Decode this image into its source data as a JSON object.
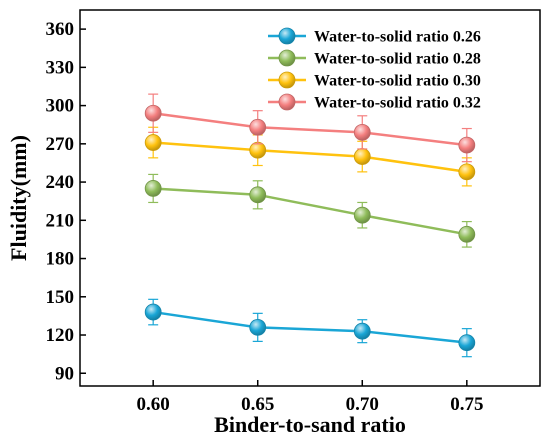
{
  "chart_data": {
    "type": "line",
    "xlabel": "Binder-to-sand ratio",
    "ylabel": "Fluidity(mm)",
    "xlim": [
      0.565,
      0.785
    ],
    "ylim": [
      80,
      375
    ],
    "x": [
      0.6,
      0.65,
      0.7,
      0.75
    ],
    "x_tick_labels": [
      "0.60",
      "0.65",
      "0.70",
      "0.75"
    ],
    "y_ticks": [
      90,
      120,
      150,
      180,
      210,
      240,
      270,
      300,
      330,
      360
    ],
    "y_tick_labels": [
      "90",
      "120",
      "150",
      "180",
      "210",
      "240",
      "270",
      "300",
      "330",
      "360"
    ],
    "legend_position": "top-right",
    "grid": false,
    "series": [
      {
        "name": "Water-to-solid ratio 0.26",
        "color": "#1aa6d6",
        "values": [
          138,
          126,
          123,
          114
        ],
        "errors": [
          10,
          11,
          9,
          11
        ]
      },
      {
        "name": "Water-to-solid ratio 0.28",
        "color": "#8fbc5a",
        "values": [
          235,
          230,
          214,
          199
        ],
        "errors": [
          11,
          11,
          10,
          10
        ]
      },
      {
        "name": "Water-to-solid ratio 0.30",
        "color": "#ffc20e",
        "values": [
          271,
          265,
          260,
          248
        ],
        "errors": [
          12,
          12,
          12,
          11
        ]
      },
      {
        "name": "Water-to-solid ratio 0.32",
        "color": "#f47f7f",
        "values": [
          294,
          283,
          279,
          269
        ],
        "errors": [
          15,
          13,
          13,
          13
        ]
      }
    ]
  }
}
